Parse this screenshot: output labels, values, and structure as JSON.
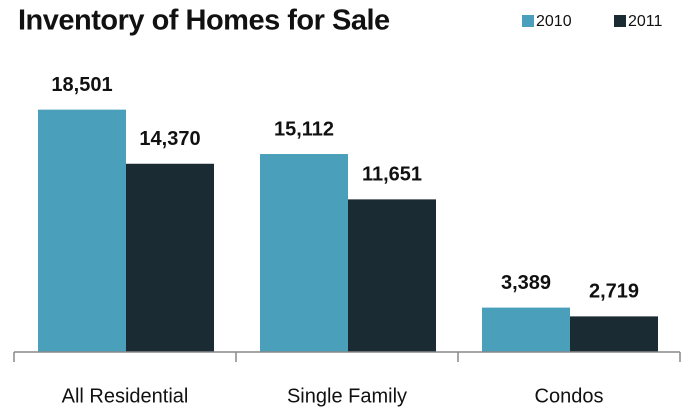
{
  "chart_data": {
    "type": "bar",
    "title": "Inventory of Homes for Sale",
    "categories": [
      "All Residential",
      "Single Family",
      "Condos"
    ],
    "series": [
      {
        "name": "2010",
        "color": "#4a9fba",
        "values": [
          18501,
          15112,
          3389
        ],
        "value_labels": [
          "18,501",
          "15,112",
          "3,389"
        ]
      },
      {
        "name": "2011",
        "color": "#1b2b33",
        "values": [
          14370,
          11651,
          2719
        ],
        "value_labels": [
          "14,370",
          "11,651",
          "2,719"
        ]
      }
    ],
    "ylim": [
      0,
      20000
    ],
    "grid": false,
    "legend": "top-right"
  }
}
